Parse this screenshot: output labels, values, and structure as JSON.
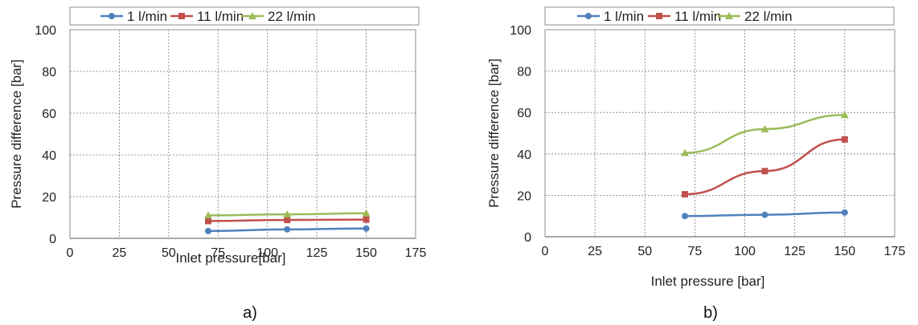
{
  "chart_data": [
    {
      "type": "line",
      "caption": "a)",
      "xlabel": "Inlet pressure[bar]",
      "ylabel": "Pressure difference [bar]",
      "xlim": [
        0,
        175
      ],
      "ylim": [
        0,
        100
      ],
      "xticks": [
        0,
        25,
        50,
        75,
        100,
        125,
        150,
        175
      ],
      "yticks": [
        0,
        20,
        40,
        60,
        80,
        100
      ],
      "grid": true,
      "legend": "top",
      "series": [
        {
          "name": "1 l/min",
          "color": "#4F81BD",
          "marker": "circle",
          "x": [
            70,
            110,
            150
          ],
          "values": [
            3.5,
            4.3,
            4.7
          ]
        },
        {
          "name": "11 l/min",
          "color": "#C0504D",
          "marker": "square",
          "x": [
            70,
            110,
            150
          ],
          "values": [
            8.3,
            8.8,
            9.0
          ]
        },
        {
          "name": "22 l/min",
          "color": "#9BBB59",
          "marker": "triangle",
          "x": [
            70,
            110,
            150
          ],
          "values": [
            11.0,
            11.5,
            12.0
          ]
        }
      ]
    },
    {
      "type": "line",
      "caption": "b)",
      "xlabel": "Inlet pressure [bar]",
      "ylabel": "Pressure difference [bar]",
      "xlim": [
        0,
        175
      ],
      "ylim": [
        0,
        100
      ],
      "xticks": [
        0,
        25,
        50,
        75,
        100,
        125,
        150,
        175
      ],
      "yticks": [
        0,
        20,
        40,
        60,
        80,
        100
      ],
      "grid": true,
      "legend": "top",
      "series": [
        {
          "name": "1 l/min",
          "color": "#4F81BD",
          "marker": "circle",
          "x": [
            70,
            110,
            150
          ],
          "values": [
            10.0,
            10.6,
            11.7
          ]
        },
        {
          "name": "11 l/min",
          "color": "#C0504D",
          "marker": "square",
          "x": [
            70,
            110,
            150
          ],
          "values": [
            20.5,
            31.7,
            47.0
          ]
        },
        {
          "name": "22 l/min",
          "color": "#9BBB59",
          "marker": "triangle",
          "x": [
            70,
            110,
            150
          ],
          "values": [
            40.5,
            52.0,
            58.8
          ]
        }
      ]
    }
  ]
}
